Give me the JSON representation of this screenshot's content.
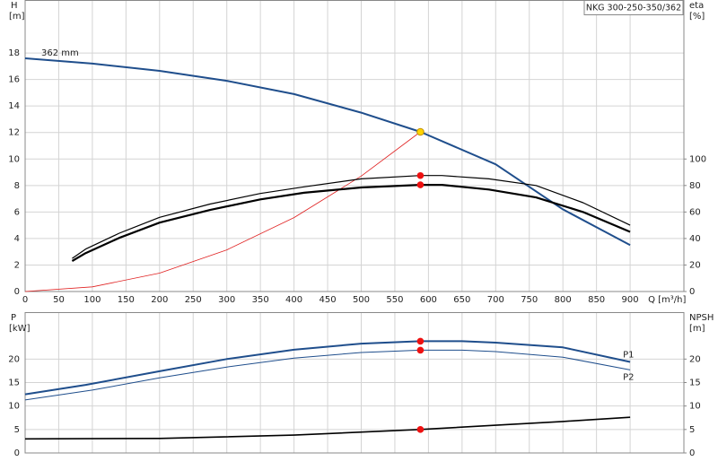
{
  "chart_data": [
    {
      "type": "line",
      "title": "NKG 300-250-350/362",
      "y_label": "H",
      "y_unit": "[m]",
      "y2_label": "eta",
      "y2_unit": "[%]",
      "x_label": "Q [m³/h]",
      "xlim": [
        0,
        980
      ],
      "xticks": [
        0,
        50,
        100,
        150,
        200,
        250,
        300,
        350,
        400,
        450,
        500,
        550,
        600,
        650,
        700,
        750,
        800,
        850,
        900
      ],
      "ylim": [
        0,
        22
      ],
      "yticks": [
        0,
        2,
        4,
        6,
        8,
        10,
        12,
        14,
        16,
        18
      ],
      "y2lim": [
        0,
        220
      ],
      "y2ticks": [
        0,
        20,
        40,
        60,
        80,
        100
      ],
      "grid": true,
      "show_xtick_labels": true,
      "series": [
        {
          "name": "362 mm",
          "label_position": "start",
          "color": "#1f4e8c",
          "width": 2,
          "x": [
            0,
            100,
            200,
            300,
            400,
            500,
            588,
            700,
            800,
            900
          ],
          "values": [
            17.6,
            17.2,
            16.65,
            15.9,
            14.9,
            13.5,
            12.05,
            9.6,
            6.2,
            3.5
          ]
        },
        {
          "color": "#e02020",
          "width": 0.8,
          "x": [
            0,
            100,
            200,
            300,
            400,
            500,
            588
          ],
          "values": [
            0,
            0.35,
            1.39,
            3.14,
            5.58,
            8.71,
            12.05
          ]
        },
        {
          "color": "#000000",
          "width": 1.2,
          "axis": "y2",
          "x": [
            70,
            90,
            140,
            200,
            275,
            350,
            415,
            500,
            588,
            620,
            690,
            760,
            830,
            900
          ],
          "values": [
            25,
            32,
            44,
            56,
            66,
            74,
            79,
            85,
            87.5,
            87.5,
            85,
            80,
            67,
            50
          ]
        },
        {
          "color": "#000000",
          "width": 2.2,
          "axis": "y2",
          "x": [
            70,
            90,
            140,
            200,
            275,
            350,
            415,
            500,
            588,
            620,
            690,
            760,
            830,
            900
          ],
          "values": [
            23,
            29,
            40.5,
            52,
            61.5,
            69.5,
            74.5,
            78.5,
            80.5,
            80.5,
            77,
            71,
            60,
            45
          ]
        }
      ],
      "points": [
        {
          "x": 588,
          "y": 12.05,
          "color": "#ffd400"
        },
        {
          "x": 588,
          "y": 87.5,
          "color": "#ee1111",
          "axis": "y2"
        },
        {
          "x": 588,
          "y": 80.5,
          "color": "#ee1111",
          "axis": "y2"
        }
      ]
    },
    {
      "type": "line",
      "y_label": "P",
      "y_unit": "[kW]",
      "y2_label": "NPSH",
      "y2_unit": "[m]",
      "xlim": [
        0,
        980
      ],
      "xticks": [
        0,
        50,
        100,
        150,
        200,
        250,
        300,
        350,
        400,
        450,
        500,
        550,
        600,
        650,
        700,
        750,
        800,
        850,
        900
      ],
      "ylim": [
        0,
        30
      ],
      "yticks": [
        0,
        5,
        10,
        15,
        20
      ],
      "y2lim": [
        0,
        30
      ],
      "y2ticks": [
        0,
        5,
        10,
        15,
        20
      ],
      "grid": true,
      "show_xtick_labels": false,
      "series": [
        {
          "name": "P1",
          "label_position": "end",
          "color": "#1f4e8c",
          "width": 2,
          "x": [
            0,
            90,
            200,
            300,
            400,
            500,
            588,
            650,
            700,
            800,
            900
          ],
          "values": [
            12.5,
            14.5,
            17.4,
            20,
            22,
            23.3,
            23.8,
            23.8,
            23.5,
            22.5,
            19.4
          ]
        },
        {
          "name": "P2",
          "label_position": "end",
          "color": "#1f4e8c",
          "width": 1,
          "x": [
            0,
            100,
            200,
            300,
            400,
            500,
            588,
            650,
            700,
            800,
            900
          ],
          "values": [
            11.3,
            13.4,
            16,
            18.3,
            20.2,
            21.4,
            21.9,
            21.9,
            21.6,
            20.4,
            17.7
          ]
        },
        {
          "color": "#000000",
          "width": 1.6,
          "axis": "y2",
          "x": [
            0,
            200,
            400,
            588,
            700,
            800,
            900
          ],
          "values": [
            3,
            3.1,
            3.8,
            5,
            5.9,
            6.7,
            7.6
          ]
        }
      ],
      "points": [
        {
          "x": 588,
          "y": 23.8,
          "color": "#ee1111"
        },
        {
          "x": 588,
          "y": 21.9,
          "color": "#ee1111"
        },
        {
          "x": 588,
          "y": 5,
          "color": "#ee1111",
          "axis": "y2"
        }
      ]
    }
  ]
}
